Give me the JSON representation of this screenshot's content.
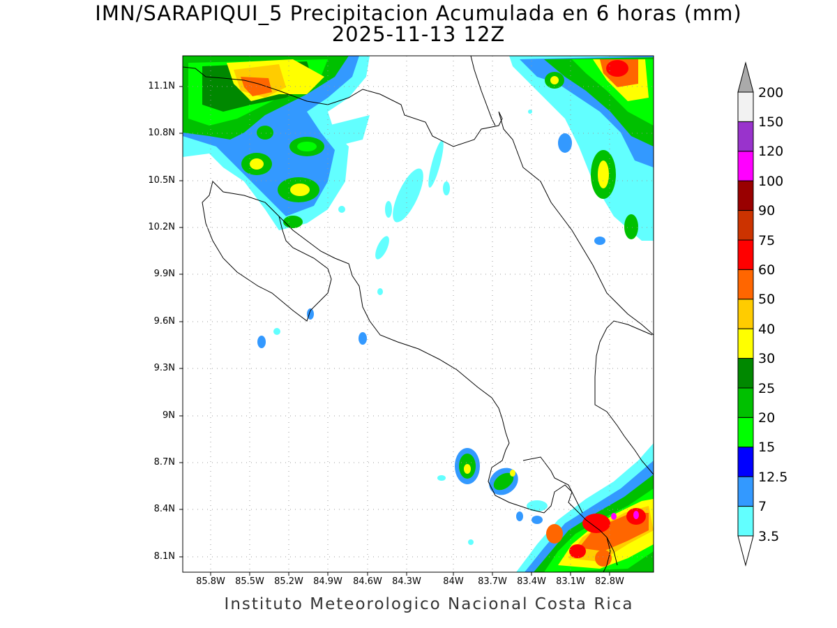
{
  "title_line1": "IMN/SARAPIQUI_5 Precipitacion Acumulada en 6 horas (mm)",
  "title_line2": "2025-11-13 12Z",
  "footer": "Instituto Meteorologico Nacional Costa Rica",
  "lat_labels": [
    "11.1N",
    "10.8N",
    "10.5N",
    "10.2N",
    "9.9N",
    "9.6N",
    "9.3N",
    "9N",
    "8.7N",
    "8.4N",
    "8.1N"
  ],
  "lon_labels": [
    "85.8W",
    "85.5W",
    "85.2W",
    "84.9W",
    "84.6W",
    "84.3W",
    "84W",
    "83.7W",
    "83.4W",
    "83.1W",
    "82.8W"
  ],
  "colorbar": {
    "levels": [
      "3.5",
      "7",
      "12.5",
      "15",
      "20",
      "25",
      "30",
      "40",
      "50",
      "60",
      "75",
      "90",
      "100",
      "120",
      "150",
      "200"
    ],
    "colors": [
      "#ffffff",
      "#62ffff",
      "#3399ff",
      "#0000ff",
      "#00ff00",
      "#00c000",
      "#008800",
      "#ffff00",
      "#ffcc00",
      "#ff6600",
      "#ff0000",
      "#cc3300",
      "#990000",
      "#ff00ff",
      "#9933cc",
      "#f2f2f2",
      "#aaaaaa"
    ]
  },
  "precip_colors": {
    "c35": "#62ffff",
    "c7": "#3399ff",
    "c125": "#0000ff",
    "c15": "#00ff00",
    "c20": "#00c000",
    "c25": "#008800",
    "c30": "#ffff00",
    "c40": "#ffcc00",
    "c50": "#ff6600",
    "c60": "#ff0000",
    "c120": "#ff00ff"
  }
}
